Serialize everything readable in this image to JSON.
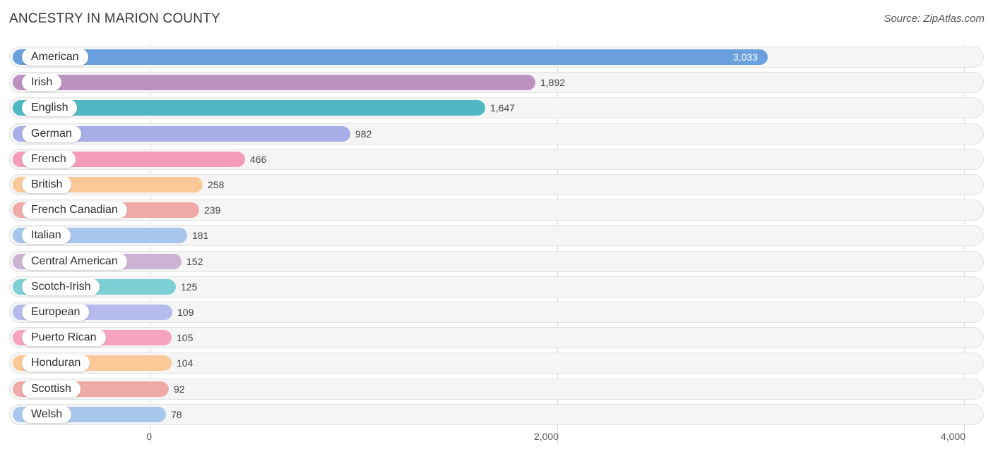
{
  "header": {
    "title": "ANCESTRY IN MARION COUNTY",
    "source": "Source: ZipAtlas.com"
  },
  "chart_data": {
    "type": "bar",
    "orientation": "horizontal",
    "title": "ANCESTRY IN MARION COUNTY",
    "categories": [
      "American",
      "Irish",
      "English",
      "German",
      "French",
      "British",
      "French Canadian",
      "Italian",
      "Central American",
      "Scotch-Irish",
      "European",
      "Puerto Rican",
      "Honduran",
      "Scottish",
      "Welsh"
    ],
    "values": [
      3033,
      1892,
      1647,
      982,
      466,
      258,
      239,
      181,
      152,
      125,
      109,
      105,
      104,
      92,
      78
    ],
    "value_labels": [
      "3,033",
      "1,892",
      "1,647",
      "982",
      "466",
      "258",
      "239",
      "181",
      "152",
      "125",
      "109",
      "105",
      "104",
      "92",
      "78"
    ],
    "colors": [
      "#6aa0dd",
      "#bc90c0",
      "#50b8c2",
      "#a8aee8",
      "#f49bb7",
      "#fbc898",
      "#efaaa8",
      "#a6c6ec",
      "#cdb3d3",
      "#7dcfd6",
      "#b5bbec",
      "#f7a3bf",
      "#fbc898",
      "#efaaa8",
      "#a6c6ec"
    ],
    "xlim": [
      0,
      4000
    ],
    "xticks": [
      0,
      2000,
      4000
    ],
    "xtick_labels": [
      "0",
      "2,000",
      "4,000"
    ],
    "grid": true
  }
}
